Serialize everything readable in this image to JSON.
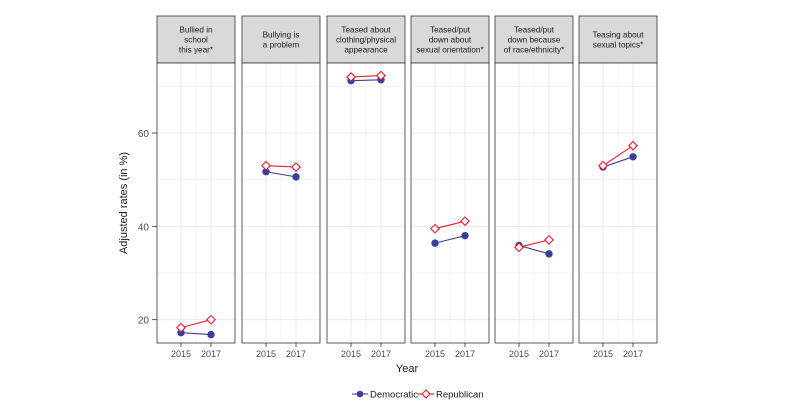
{
  "chart_data": {
    "type": "line",
    "ylabel": "Adjusted rates (in %)",
    "xlabel": "Year",
    "x": [
      "2015",
      "2017"
    ],
    "ylim": [
      15,
      75
    ],
    "yticks": [
      20,
      40,
      60
    ],
    "grid": true,
    "legend_position": "bottom",
    "colors": {
      "Democratic": "#3b3f9c",
      "Republican": "#e8192c"
    },
    "markers": {
      "Democratic": "circle",
      "Republican": "diamond-open"
    },
    "series_names": [
      "Democratic",
      "Republican"
    ],
    "panels": [
      {
        "title": [
          "Bullied in",
          "school",
          "this year*"
        ],
        "values": {
          "Democratic": [
            17.2,
            16.8
          ],
          "Republican": [
            18.3,
            20.0
          ]
        }
      },
      {
        "title": [
          "Bullying is",
          "a problem"
        ],
        "values": {
          "Democratic": [
            51.7,
            50.6
          ],
          "Republican": [
            53.0,
            52.7
          ]
        }
      },
      {
        "title": [
          "Teased about",
          "clothing/physical",
          "appearance"
        ],
        "values": {
          "Democratic": [
            71.2,
            71.4
          ],
          "Republican": [
            72.0,
            72.3
          ]
        }
      },
      {
        "title": [
          "Teased/put",
          "down about",
          "sexual orientation*"
        ],
        "values": {
          "Democratic": [
            36.4,
            38.0
          ],
          "Republican": [
            39.5,
            41.1
          ]
        }
      },
      {
        "title": [
          "Teased/put",
          "down because",
          "of race/ethnicity*"
        ],
        "values": {
          "Democratic": [
            35.9,
            34.1
          ],
          "Republican": [
            35.5,
            37.1
          ]
        }
      },
      {
        "title": [
          "Teasing about",
          "sexual topics*"
        ],
        "values": {
          "Democratic": [
            52.7,
            54.9
          ],
          "Republican": [
            53.0,
            57.3
          ]
        }
      }
    ]
  }
}
